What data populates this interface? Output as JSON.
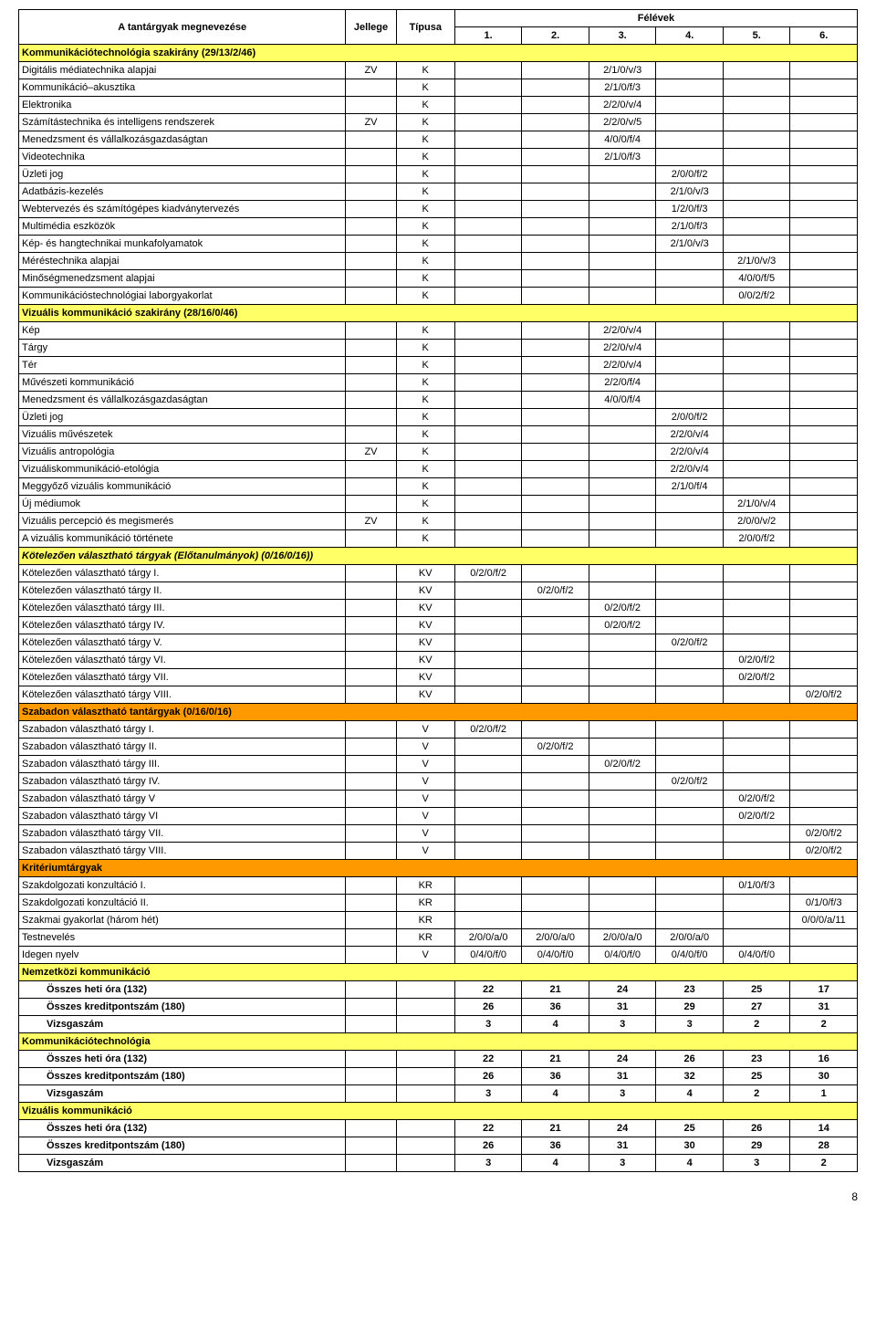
{
  "colors": {
    "yellow": "#ffff66",
    "orange": "#ff9900",
    "border": "#000000",
    "bg": "#ffffff",
    "text": "#000000"
  },
  "header": {
    "name": "A tantárgyak megnevezése",
    "jellege": "Jellege",
    "tipusa": "Típusa",
    "felevek": "Félévek",
    "sem": [
      "1.",
      "2.",
      "3.",
      "4.",
      "5.",
      "6."
    ]
  },
  "sections": [
    {
      "type": "yellow",
      "name": "Kommunikációtechnológia szakirány (29/13/2/46)"
    },
    {
      "name": "Digitális médiatechnika alapjai",
      "j": "ZV",
      "t": "K",
      "s": [
        "",
        "",
        "2/1/0/v/3",
        "",
        "",
        ""
      ]
    },
    {
      "name": "Kommunikáció–akusztika",
      "j": "",
      "t": "K",
      "s": [
        "",
        "",
        "2/1/0/f/3",
        "",
        "",
        ""
      ]
    },
    {
      "name": "Elektronika",
      "j": "",
      "t": "K",
      "s": [
        "",
        "",
        "2/2/0/v/4",
        "",
        "",
        ""
      ]
    },
    {
      "name": "Számítástechnika és intelligens rendszerek",
      "j": "ZV",
      "t": "K",
      "s": [
        "",
        "",
        "2/2/0/v/5",
        "",
        "",
        ""
      ]
    },
    {
      "name": "Menedzsment és vállalkozásgazdaságtan",
      "j": "",
      "t": "K",
      "s": [
        "",
        "",
        "4/0/0/f/4",
        "",
        "",
        ""
      ]
    },
    {
      "name": "Videotechnika",
      "j": "",
      "t": "K",
      "s": [
        "",
        "",
        "2/1/0/f/3",
        "",
        "",
        ""
      ]
    },
    {
      "name": "Üzleti jog",
      "j": "",
      "t": "K",
      "s": [
        "",
        "",
        "",
        "2/0/0/f/2",
        "",
        ""
      ]
    },
    {
      "name": "Adatbázis-kezelés",
      "j": "",
      "t": "K",
      "s": [
        "",
        "",
        "",
        "2/1/0/v/3",
        "",
        ""
      ]
    },
    {
      "name": "Webtervezés és számítógépes kiadványtervezés",
      "j": "",
      "t": "K",
      "s": [
        "",
        "",
        "",
        "1/2/0/f/3",
        "",
        ""
      ]
    },
    {
      "name": "Multimédia eszközök",
      "j": "",
      "t": "K",
      "s": [
        "",
        "",
        "",
        "2/1/0/f/3",
        "",
        ""
      ]
    },
    {
      "name": "Kép- és hangtechnikai munkafolyamatok",
      "j": "",
      "t": "K",
      "s": [
        "",
        "",
        "",
        "2/1/0/v/3",
        "",
        ""
      ]
    },
    {
      "name": "Méréstechnika alapjai",
      "j": "",
      "t": "K",
      "s": [
        "",
        "",
        "",
        "",
        "2/1/0/v/3",
        ""
      ]
    },
    {
      "name": "Minőségmenedzsment alapjai",
      "j": "",
      "t": "K",
      "s": [
        "",
        "",
        "",
        "",
        "4/0/0/f/5",
        ""
      ]
    },
    {
      "name": "Kommunikációstechnológiai laborgyakorlat",
      "j": "",
      "t": "K",
      "s": [
        "",
        "",
        "",
        "",
        "0/0/2/f/2",
        ""
      ]
    },
    {
      "type": "yellow",
      "name": "Vizuális kommunikáció szakirány (28/16/0/46)"
    },
    {
      "name": "Kép",
      "j": "",
      "t": "K",
      "s": [
        "",
        "",
        "2/2/0/v/4",
        "",
        "",
        ""
      ]
    },
    {
      "name": "Tárgy",
      "j": "",
      "t": "K",
      "s": [
        "",
        "",
        "2/2/0/v/4",
        "",
        "",
        ""
      ]
    },
    {
      "name": "Tér",
      "j": "",
      "t": "K",
      "s": [
        "",
        "",
        "2/2/0/v/4",
        "",
        "",
        ""
      ]
    },
    {
      "name": "Művészeti kommunikáció",
      "j": "",
      "t": "K",
      "s": [
        "",
        "",
        "2/2/0/f/4",
        "",
        "",
        ""
      ]
    },
    {
      "name": "Menedzsment és vállalkozásgazdaságtan",
      "j": "",
      "t": "K",
      "s": [
        "",
        "",
        "4/0/0/f/4",
        "",
        "",
        ""
      ]
    },
    {
      "name": "Üzleti jog",
      "j": "",
      "t": "K",
      "s": [
        "",
        "",
        "",
        "2/0/0/f/2",
        "",
        ""
      ]
    },
    {
      "name": "Vizuális művészetek",
      "j": "",
      "t": "K",
      "s": [
        "",
        "",
        "",
        "2/2/0/v/4",
        "",
        ""
      ]
    },
    {
      "name": "Vizuális antropológia",
      "j": "ZV",
      "t": "K",
      "s": [
        "",
        "",
        "",
        "2/2/0/v/4",
        "",
        ""
      ]
    },
    {
      "name": "Vizuáliskommunikáció-etológia",
      "j": "",
      "t": "K",
      "s": [
        "",
        "",
        "",
        "2/2/0/v/4",
        "",
        ""
      ]
    },
    {
      "name": "Meggyőző vizuális kommunikáció",
      "j": "",
      "t": "K",
      "s": [
        "",
        "",
        "",
        "2/1/0/f/4",
        "",
        ""
      ]
    },
    {
      "name": "Új médiumok",
      "j": "",
      "t": "K",
      "s": [
        "",
        "",
        "",
        "",
        "2/1/0/v/4",
        ""
      ]
    },
    {
      "name": "Vizuális percepció és megismerés",
      "j": "ZV",
      "t": "K",
      "s": [
        "",
        "",
        "",
        "",
        "2/0/0/v/2",
        ""
      ]
    },
    {
      "name": "A vizuális kommunikáció története",
      "j": "",
      "t": "K",
      "s": [
        "",
        "",
        "",
        "",
        "2/0/0/f/2",
        ""
      ]
    },
    {
      "type": "yellow",
      "italic": true,
      "name": "Kötelezően választható tárgyak (Előtanulmányok) (0/16/0/16))"
    },
    {
      "name": "Kötelezően választható tárgy I.",
      "j": "",
      "t": "KV",
      "s": [
        "0/2/0/f/2",
        "",
        "",
        "",
        "",
        ""
      ]
    },
    {
      "name": "Kötelezően választható tárgy II.",
      "j": "",
      "t": "KV",
      "s": [
        "",
        "0/2/0/f/2",
        "",
        "",
        "",
        ""
      ]
    },
    {
      "name": "Kötelezően választható tárgy III.",
      "j": "",
      "t": "KV",
      "s": [
        "",
        "",
        "0/2/0/f/2",
        "",
        "",
        ""
      ]
    },
    {
      "name": "Kötelezően választható tárgy IV.",
      "j": "",
      "t": "KV",
      "s": [
        "",
        "",
        "0/2/0/f/2",
        "",
        "",
        ""
      ]
    },
    {
      "name": "Kötelezően választható tárgy V.",
      "j": "",
      "t": "KV",
      "s": [
        "",
        "",
        "",
        "0/2/0/f/2",
        "",
        ""
      ]
    },
    {
      "name": "Kötelezően választható tárgy VI.",
      "j": "",
      "t": "KV",
      "s": [
        "",
        "",
        "",
        "",
        "0/2/0/f/2",
        ""
      ]
    },
    {
      "name": "Kötelezően választható tárgy VII.",
      "j": "",
      "t": "KV",
      "s": [
        "",
        "",
        "",
        "",
        "0/2/0/f/2",
        ""
      ]
    },
    {
      "name": "Kötelezően választható tárgy VIII.",
      "j": "",
      "t": "KV",
      "s": [
        "",
        "",
        "",
        "",
        "",
        "0/2/0/f/2"
      ]
    },
    {
      "type": "orange",
      "name": "Szabadon választható tantárgyak (0/16/0/16)"
    },
    {
      "name": "Szabadon választható tárgy I.",
      "j": "",
      "t": "V",
      "s": [
        "0/2/0/f/2",
        "",
        "",
        "",
        "",
        ""
      ]
    },
    {
      "name": "Szabadon választható tárgy II.",
      "j": "",
      "t": "V",
      "s": [
        "",
        "0/2/0/f/2",
        "",
        "",
        "",
        ""
      ]
    },
    {
      "name": "Szabadon választható tárgy III.",
      "j": "",
      "t": "V",
      "s": [
        "",
        "",
        "0/2/0/f/2",
        "",
        "",
        ""
      ]
    },
    {
      "name": "Szabadon választható tárgy IV.",
      "j": "",
      "t": "V",
      "s": [
        "",
        "",
        "",
        "0/2/0/f/2",
        "",
        ""
      ]
    },
    {
      "name": "Szabadon választható tárgy V",
      "j": "",
      "t": "V",
      "s": [
        "",
        "",
        "",
        "",
        "0/2/0/f/2",
        ""
      ]
    },
    {
      "name": "Szabadon választható tárgy VI",
      "j": "",
      "t": "V",
      "s": [
        "",
        "",
        "",
        "",
        "0/2/0/f/2",
        ""
      ]
    },
    {
      "name": "Szabadon választható tárgy VII.",
      "j": "",
      "t": "V",
      "s": [
        "",
        "",
        "",
        "",
        "",
        "0/2/0/f/2"
      ]
    },
    {
      "name": "Szabadon választható tárgy VIII.",
      "j": "",
      "t": "V",
      "s": [
        "",
        "",
        "",
        "",
        "",
        "0/2/0/f/2"
      ]
    },
    {
      "type": "orange",
      "name": "Kritériumtárgyak"
    },
    {
      "name": "Szakdolgozati konzultáció I.",
      "j": "",
      "t": "KR",
      "s": [
        "",
        "",
        "",
        "",
        "0/1/0/f/3",
        ""
      ]
    },
    {
      "name": "Szakdolgozati konzultáció II.",
      "j": "",
      "t": "KR",
      "s": [
        "",
        "",
        "",
        "",
        "",
        "0/1/0/f/3"
      ]
    },
    {
      "name": "Szakmai gyakorlat (három hét)",
      "j": "",
      "t": "KR",
      "s": [
        "",
        "",
        "",
        "",
        "",
        "0/0/0/a/11"
      ]
    },
    {
      "name": "Testnevelés",
      "j": "",
      "t": "KR",
      "s": [
        "2/0/0/a/0",
        "2/0/0/a/0",
        "2/0/0/a/0",
        "2/0/0/a/0",
        "",
        ""
      ]
    },
    {
      "type": "plainrow",
      "name": "Idegen nyelv",
      "j": "",
      "t": "V",
      "s": [
        "0/4/0/f/0",
        "0/4/0/f/0",
        "0/4/0/f/0",
        "0/4/0/f/0",
        "0/4/0/f/0",
        ""
      ]
    }
  ],
  "summaries": [
    {
      "title": "Nemzetközi kommunikáció",
      "rows": [
        {
          "label": "Összes heti óra (132)",
          "s": [
            "22",
            "21",
            "24",
            "23",
            "25",
            "17"
          ]
        },
        {
          "label": "Összes kreditpontszám (180)",
          "s": [
            "26",
            "36",
            "31",
            "29",
            "27",
            "31"
          ]
        },
        {
          "label": "Vizsgaszám",
          "s": [
            "3",
            "4",
            "3",
            "3",
            "2",
            "2"
          ]
        }
      ]
    },
    {
      "title": "Kommunikációtechnológia",
      "rows": [
        {
          "label": "Összes heti óra (132)",
          "s": [
            "22",
            "21",
            "24",
            "26",
            "23",
            "16"
          ]
        },
        {
          "label": "Összes kreditpontszám (180)",
          "s": [
            "26",
            "36",
            "31",
            "32",
            "25",
            "30"
          ]
        },
        {
          "label": "Vizsgaszám",
          "s": [
            "3",
            "4",
            "3",
            "4",
            "2",
            "1"
          ]
        }
      ]
    },
    {
      "title": "Vizuális kommunikáció",
      "rows": [
        {
          "label": "Összes heti óra (132)",
          "s": [
            "22",
            "21",
            "24",
            "25",
            "26",
            "14"
          ]
        },
        {
          "label": "Összes kreditpontszám (180)",
          "s": [
            "26",
            "36",
            "31",
            "30",
            "29",
            "28"
          ]
        },
        {
          "label": "Vizsgaszám",
          "s": [
            "3",
            "4",
            "3",
            "4",
            "3",
            "2"
          ]
        }
      ]
    }
  ],
  "page_number": "8"
}
